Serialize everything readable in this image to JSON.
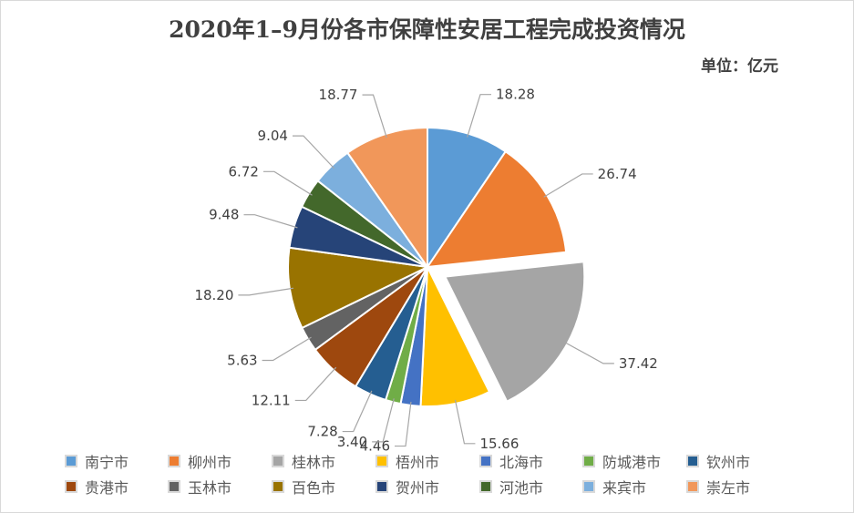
{
  "chart_data": {
    "type": "pie",
    "title": "2020年1–9月份各市保障性安居工程完成投资情况",
    "unit_label": "单位：亿元",
    "categories": [
      "南宁市",
      "柳州市",
      "桂林市",
      "梧州市",
      "北海市",
      "防城港市",
      "钦州市",
      "贵港市",
      "玉林市",
      "百色市",
      "贺州市",
      "河池市",
      "来宾市",
      "崇左市"
    ],
    "values": [
      18.28,
      26.74,
      37.42,
      15.66,
      4.46,
      3.4,
      7.28,
      12.11,
      5.63,
      18.2,
      9.48,
      6.72,
      9.04,
      18.77
    ],
    "value_labels": [
      "18.28",
      "26.74",
      "37.42",
      "15.66",
      "4.46",
      "3.40",
      "7.28",
      "12.11",
      "5.63",
      "18.20",
      "9.48",
      "6.72",
      "9.04",
      "18.77"
    ],
    "colors": [
      "#5B9BD5",
      "#ED7D31",
      "#A5A5A5",
      "#FFC000",
      "#4472C4",
      "#70AD47",
      "#255E91",
      "#9E480E",
      "#636363",
      "#997300",
      "#264478",
      "#43682B",
      "#7CAFDD",
      "#F1975A"
    ],
    "exploded": [
      "桂林市"
    ],
    "legend_position": "bottom"
  }
}
